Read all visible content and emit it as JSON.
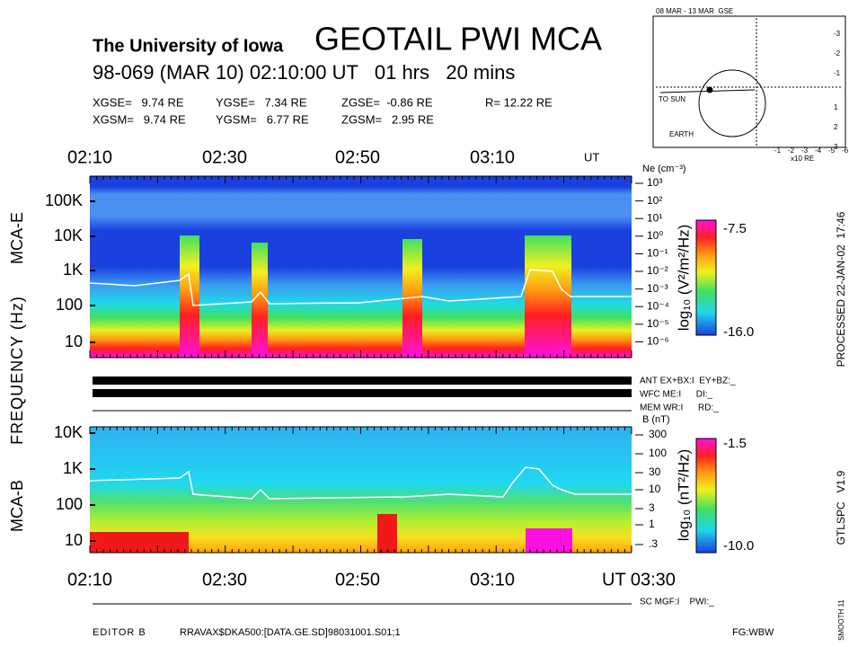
{
  "header": {
    "institution": "The University of Iowa",
    "title": "GEOTAIL PWI MCA",
    "time_line": "98-069 (MAR 10) 02:10:00 UT   01 hrs   20 mins",
    "gse": [
      "XGSE=   9.74 RE",
      "YGSE=   7.34 RE",
      "ZGSE=  -0.86 RE",
      "R= 12.22 RE"
    ],
    "gsm": [
      "XGSM=   9.74 RE",
      "YGSM=   6.77 RE",
      "ZGSM=   2.95 RE"
    ]
  },
  "orbit": {
    "title": "08 MAR - 13 MAR  GSE",
    "x_ticks": [
      "-1",
      "-2",
      "-3",
      "-4",
      "-5",
      "-6"
    ],
    "y_ticks": [
      "-3",
      "-2",
      "-1",
      "1",
      "2",
      "3"
    ],
    "x_label": "x10 RE",
    "sun_label": "TO SUN",
    "earth_label": "EARTH"
  },
  "time_axis_top": [
    "02:10",
    "02:30",
    "02:50",
    "03:10",
    "UT"
  ],
  "y_axis_label": "FREQUENCY (Hz)",
  "mca_e": {
    "label": "MCA-E",
    "freq_ticks": [
      "100K",
      "10K",
      "1K",
      "100",
      "10"
    ],
    "ne_title": "Ne (cm⁻³)",
    "ne_ticks": [
      "10³",
      "10²",
      "10¹",
      "10⁰",
      "10⁻¹",
      "10⁻²",
      "10⁻³",
      "10⁻⁴",
      "10⁻⁵",
      "10⁻⁶"
    ],
    "colorbar_max": "-7.5",
    "colorbar_min": "-16.0",
    "colorbar_label": "log₁₀ (V²/m²/Hz)"
  },
  "status": [
    "ANT EX+BX:I  EY+BZ:_",
    "WFC ME:I      DI:_",
    "MEM WR:I      RD:_"
  ],
  "mca_b": {
    "label": "MCA-B",
    "freq_ticks": [
      "10K",
      "1K",
      "100",
      "10"
    ],
    "b_title": "B (nT)",
    "b_ticks": [
      "300",
      "100",
      "30",
      "10",
      "3",
      "1",
      ".3"
    ],
    "colorbar_max": "-1.5",
    "colorbar_min": "-10.0",
    "colorbar_label": "log₁₀ (nT²/Hz)"
  },
  "time_axis_bottom": [
    "02:10",
    "02:30",
    "02:50",
    "03:10",
    "UT 03:30"
  ],
  "sc_status": "SC MGF:I    PWI:_",
  "footer": {
    "editor": "EDITOR B",
    "file": "RRAVAX$DKA500:[DATA.GE.SD]98031001.S01;1",
    "fg": "FG:WBW"
  },
  "side": {
    "processed": "PROCESSED 22-JAN-02  17:46",
    "version": "GTLSPC   V1.9",
    "smooth": "SMOOTH 11"
  }
}
